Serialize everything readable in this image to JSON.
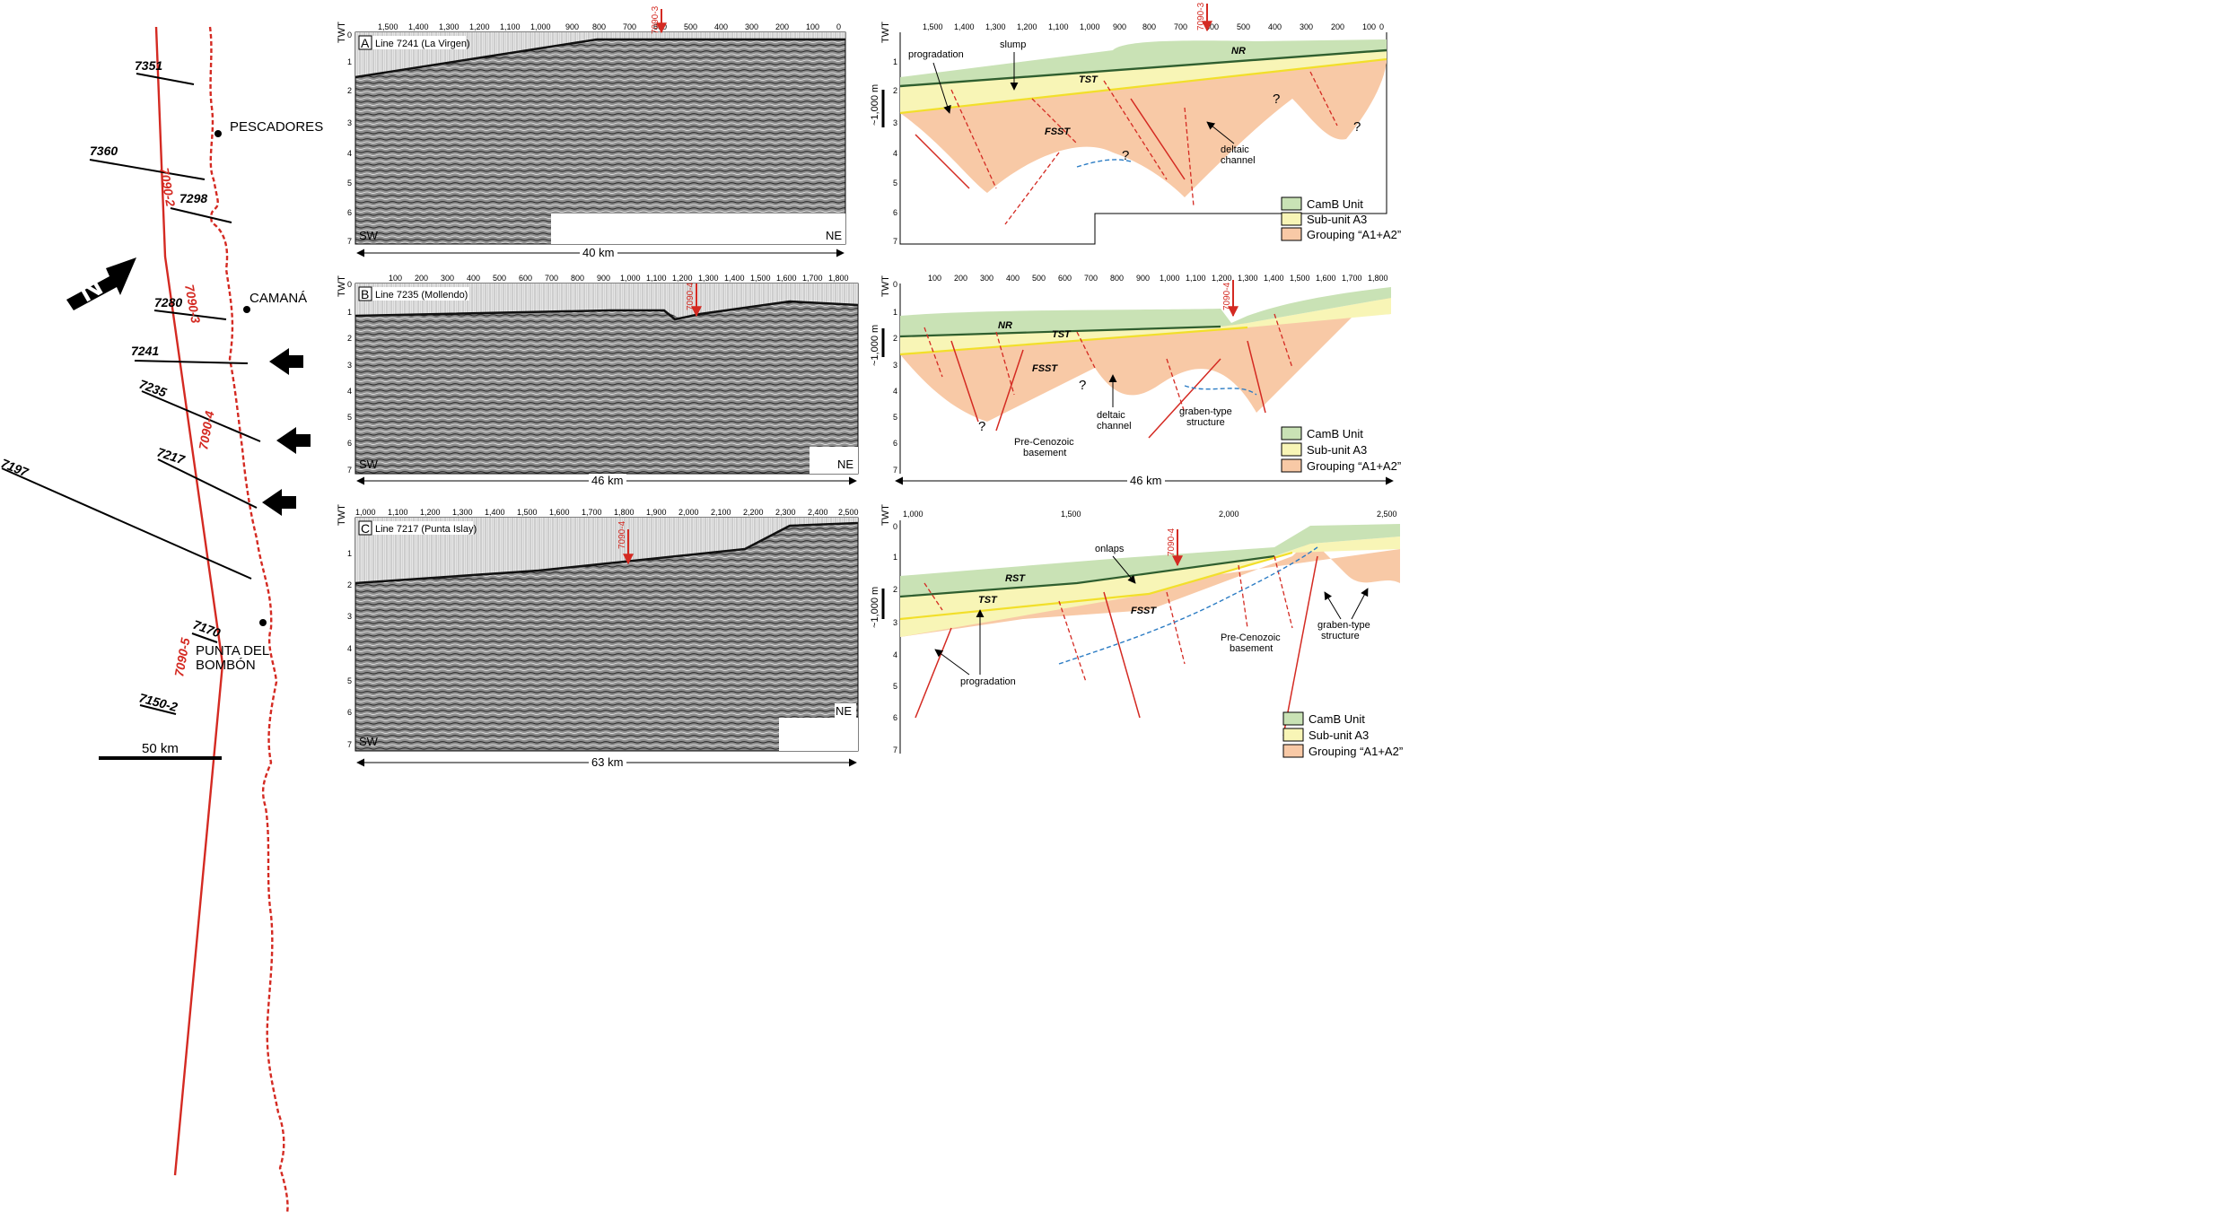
{
  "map": {
    "lines": [
      "7351",
      "7360",
      "7298",
      "7280",
      "7241",
      "7235",
      "7217",
      "7197",
      "7170",
      "7150-2"
    ],
    "red_line_labels": [
      "7090-2",
      "7090-3",
      "7090-4",
      "7090-5"
    ],
    "towns": [
      "PESCADORES",
      "CAMANÁ",
      "PUNTA DEL",
      "BOMBÓN"
    ],
    "scale": "50 km",
    "north_letter": "N"
  },
  "panels": {
    "A": {
      "letter": "A",
      "title": "Line 7241 (La Virgen)",
      "sw": "SW",
      "ne": "NE",
      "distance": "40 km",
      "marker": "7090-3",
      "ticks": [
        "1,500",
        "1,400",
        "1,300",
        "1,200",
        "1,100",
        "1,000",
        "900",
        "800",
        "700",
        "600",
        "500",
        "400",
        "300",
        "200",
        "100",
        "0"
      ]
    },
    "B": {
      "letter": "B",
      "title": "Line 7235 (Mollendo)",
      "sw": "SW",
      "ne": "NE",
      "distance": "46 km",
      "marker": "7090-4",
      "ticks": [
        "100",
        "200",
        "300",
        "400",
        "500",
        "600",
        "700",
        "800",
        "900",
        "1,000",
        "1,100",
        "1,200",
        "1,300",
        "1,400",
        "1,500",
        "1,600",
        "1,700",
        "1,800"
      ]
    },
    "C": {
      "letter": "C",
      "title": "Line 7217 (Punta Islay)",
      "sw": "SW",
      "ne": "NE",
      "distance": "63 km",
      "marker": "7090-4",
      "ticks": [
        "1,000",
        "1,100",
        "1,200",
        "1,300",
        "1,400",
        "1,500",
        "1,600",
        "1,700",
        "1,800",
        "1,900",
        "2,000",
        "2,100",
        "2,200",
        "2,300",
        "2,400",
        "2,500"
      ]
    }
  },
  "interpretations": {
    "A": {
      "ticks": [
        "1,500",
        "1,400",
        "1,300",
        "1,200",
        "1,100",
        "1,000",
        "900",
        "800",
        "700",
        "600",
        "500",
        "400",
        "300",
        "200",
        "100",
        "0"
      ],
      "labels": [
        "progradation",
        "slump",
        "NR",
        "TST",
        "FSST",
        "deltaic",
        "channel",
        "?",
        "?",
        "?"
      ],
      "marker": "7090-3"
    },
    "B": {
      "ticks": [
        "100",
        "200",
        "300",
        "400",
        "500",
        "600",
        "700",
        "800",
        "900",
        "1,000",
        "1,100",
        "1,200",
        "1,300",
        "1,400",
        "1,500",
        "1,600",
        "1,700",
        "1,800"
      ],
      "labels": [
        "NR",
        "TST",
        "FSST",
        "deltaic",
        "channel",
        "graben-type",
        "structure",
        "Pre-Cenozoic",
        "basement",
        "?",
        "?"
      ],
      "distance": "46 km",
      "marker": "7090-4"
    },
    "C": {
      "ticks": [
        "1,000",
        "1,500",
        "2,000",
        "2,500"
      ],
      "labels": [
        "RST",
        "TST",
        "FSST",
        "onlaps",
        "progradation",
        "Pre-Cenozoic",
        "basement",
        "graben-type",
        "structure"
      ],
      "marker": "7090-4"
    }
  },
  "axis": {
    "twt": "TWT",
    "depth_scale": "~1,000 m",
    "y_ticks": [
      "0",
      "1",
      "2",
      "3",
      "4",
      "5",
      "6",
      "7"
    ]
  },
  "legend": {
    "camb": "CamB Unit",
    "a3": "Sub-unit A3",
    "a1a2": "Grouping “A1+A2”"
  },
  "colors": {
    "camb": "#c9e2b5",
    "a3": "#f8f5b6",
    "a1a2": "#f8c9a6",
    "red": "#d42a22",
    "blue": "#2b7cc4"
  }
}
